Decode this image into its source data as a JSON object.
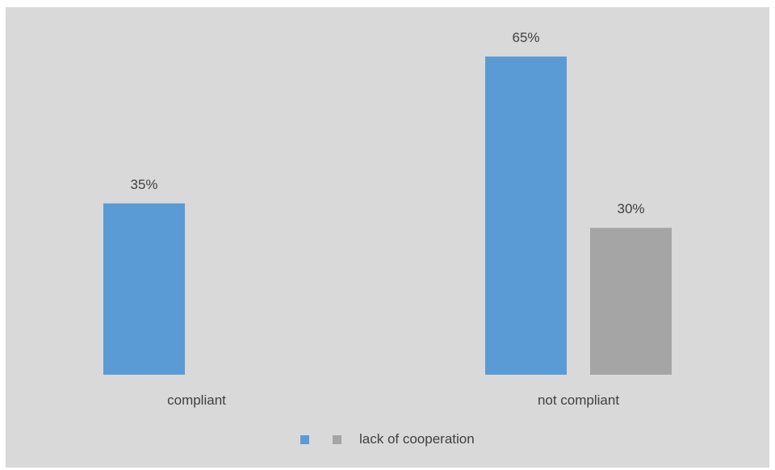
{
  "chart_data": {
    "type": "bar",
    "categories": [
      "compliant",
      "not compliant"
    ],
    "series": [
      {
        "values": [
          35,
          65
        ],
        "labels": [
          "35%",
          "65%"
        ],
        "color": "#5b9bd5"
      },
      {
        "name": "lack of cooperation",
        "values": [
          null,
          30
        ],
        "labels": [
          "",
          "30%"
        ],
        "color": "#a5a5a5"
      }
    ],
    "title": "",
    "xlabel": "",
    "ylabel": "",
    "ylim": [
      0,
      70
    ],
    "grid": false,
    "legend_position": "bottom"
  }
}
